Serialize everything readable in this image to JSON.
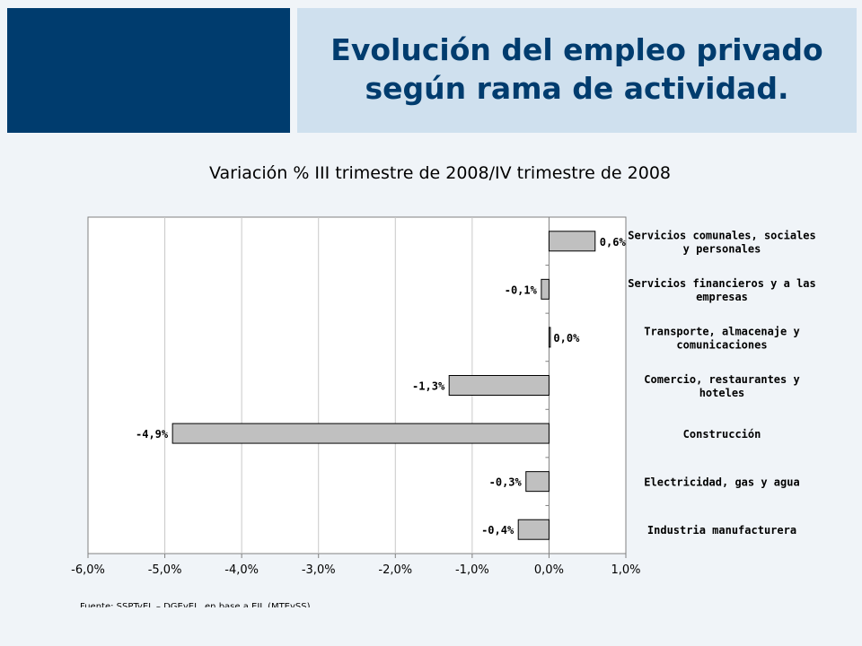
{
  "slide": {
    "title_line1": "Evolución del empleo privado",
    "title_line2": "según rama de actividad."
  },
  "chart_data": {
    "type": "bar",
    "orientation": "horizontal",
    "title": "Variación % III trimestre de 2008/IV trimestre de 2008",
    "categories": [
      [
        "Servicios comunales, sociales",
        "y personales"
      ],
      [
        "Servicios financieros y a las",
        "empresas"
      ],
      [
        "Transporte, almacenaje y",
        "comunicaciones"
      ],
      [
        "Comercio, restaurantes y",
        "hoteles"
      ],
      [
        "Construcción"
      ],
      [
        "Electricidad, gas y agua"
      ],
      [
        "Industria manufacturera"
      ]
    ],
    "values": [
      0.6,
      -0.1,
      0.0,
      -1.3,
      -4.9,
      -0.3,
      -0.4
    ],
    "data_labels": [
      "0,6%",
      "-0,1%",
      "0,0%",
      "-1,3%",
      "-4,9%",
      "-0,3%",
      "-0,4%"
    ],
    "xlim": [
      -6.0,
      1.0
    ],
    "xticks": [
      -6,
      -5,
      -4,
      -3,
      -2,
      -1,
      0,
      1
    ],
    "xtick_labels": [
      "-6,0%",
      "-5,0%",
      "-4,0%",
      "-3,0%",
      "-2,0%",
      "-1,0%",
      "0,0%",
      "1,0%"
    ],
    "grid": true,
    "bar_color": "#c0c0c0",
    "source": "Fuente: SSPTyEL – DGEyEL, en base a EIL (MTEySS)."
  }
}
